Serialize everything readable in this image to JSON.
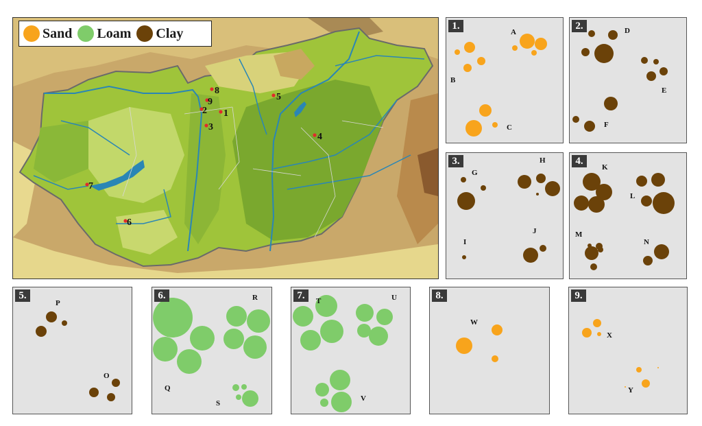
{
  "legend": [
    {
      "label": "Sand",
      "color": "#f8a41c"
    },
    {
      "label": "Loam",
      "color": "#7fcc6a"
    },
    {
      "label": "Clay",
      "color": "#6b4209"
    }
  ],
  "sites": [
    "1",
    "2",
    "3",
    "4",
    "5",
    "6",
    "7",
    "8",
    "9"
  ],
  "colors": {
    "sand": "#f8a41c",
    "loam": "#7fcc6a",
    "clay": "#6b4209",
    "site_dot": "#e02b2b",
    "water": "#2a86b5",
    "panel_bg": "#e3e3e3"
  },
  "panels": [
    {
      "number": "1.",
      "soil": "sand",
      "labels": [
        "A",
        "B",
        "C"
      ]
    },
    {
      "number": "2.",
      "soil": "clay",
      "labels": [
        "D",
        "E",
        "F"
      ]
    },
    {
      "number": "3.",
      "soil": "clay",
      "labels": [
        "G",
        "H",
        "I",
        "J"
      ]
    },
    {
      "number": "4.",
      "soil": "clay",
      "labels": [
        "K",
        "L",
        "M",
        "N"
      ]
    },
    {
      "number": "5.",
      "soil": "clay",
      "labels": [
        "P",
        "O"
      ]
    },
    {
      "number": "6.",
      "soil": "loam",
      "labels": [
        "R",
        "Q",
        "S"
      ]
    },
    {
      "number": "7.",
      "soil": "loam",
      "labels": [
        "T",
        "U",
        "V"
      ]
    },
    {
      "number": "8.",
      "soil": "sand",
      "labels": [
        "W"
      ]
    },
    {
      "number": "9.",
      "soil": "sand",
      "labels": [
        "X",
        "Y"
      ]
    }
  ]
}
